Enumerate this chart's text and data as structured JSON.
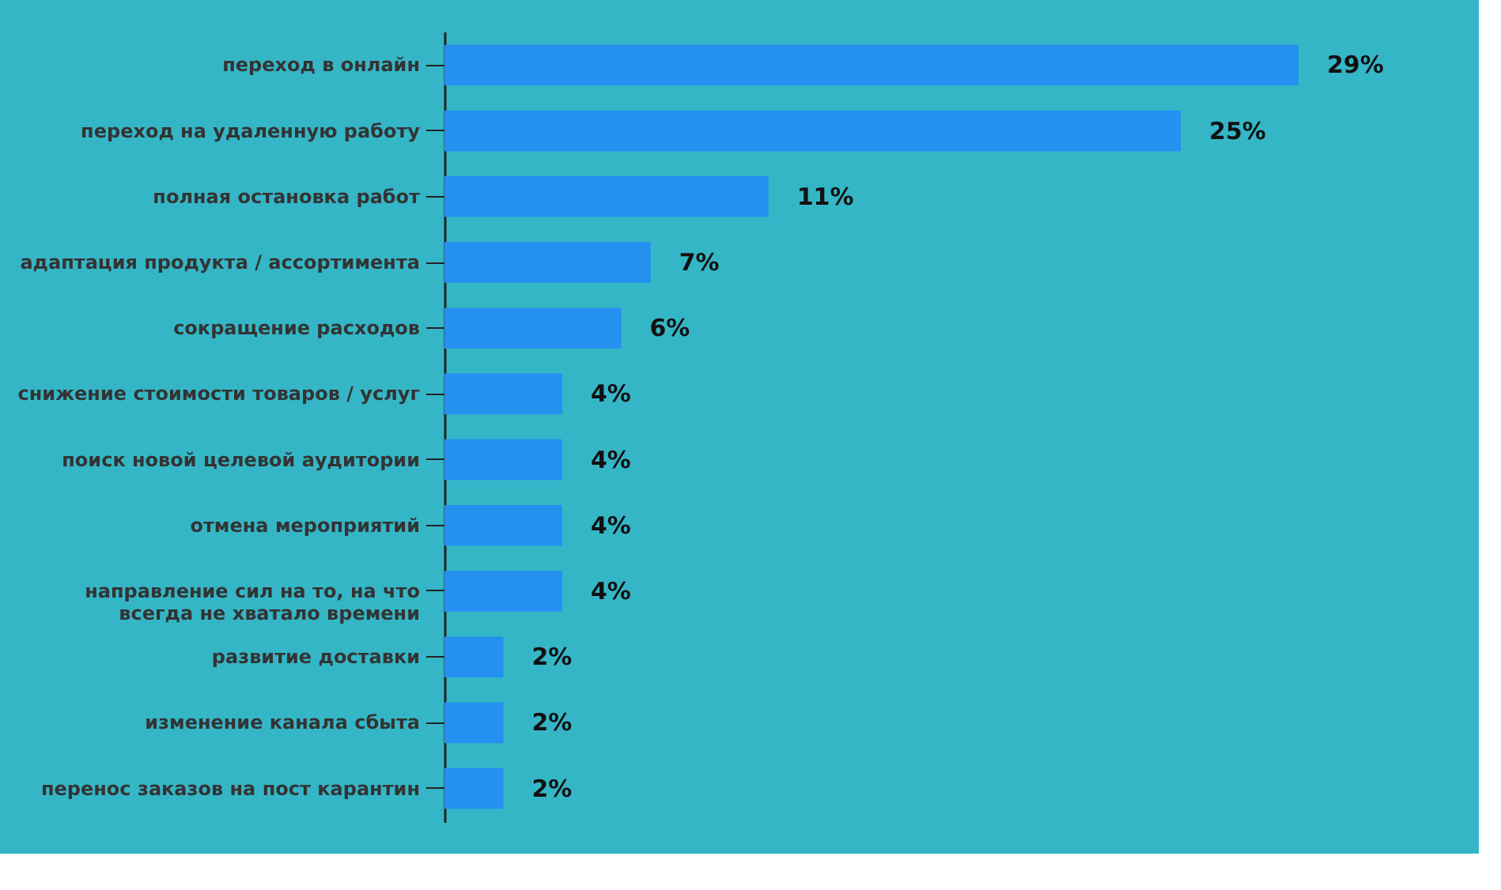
{
  "chart_data": {
    "type": "bar",
    "orientation": "horizontal",
    "categories": [
      "переход в онлайн",
      "переход на удаленную работу",
      "полная остановка работ",
      "адаптация продукта / ассортимента",
      "сокращение расходов",
      "снижение стоимости товаров / услуг",
      "поиск новой целевой аудитории",
      "отмена мероприятий",
      "направление сил на то, на что всегда не хватало времени",
      "развитие доставки",
      "изменение канала сбыта",
      "перенос заказов на пост карантин"
    ],
    "values": [
      29,
      25,
      11,
      7,
      6,
      4,
      4,
      4,
      4,
      2,
      2,
      2
    ],
    "value_labels": [
      "29%",
      "25%",
      "11%",
      "7%",
      "6%",
      "4%",
      "4%",
      "4%",
      "4%",
      "2%",
      "2%",
      "2%"
    ],
    "color": "#2490ef",
    "tick_labels": "y"
  }
}
